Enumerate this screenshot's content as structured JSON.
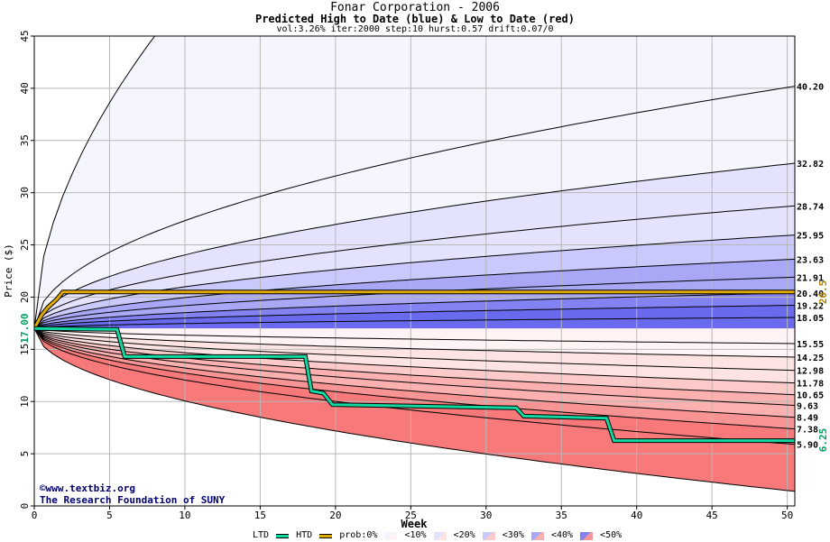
{
  "header": {
    "title": "Fonar Corporation - 2006",
    "subtitle": "Predicted High to Date (blue) &  Low to Date (red)",
    "params": "vol:3.26% iter:2000 step:10 hurst:0.57 drift:0.07/0"
  },
  "watermark": {
    "line1": "©www.textbiz.org",
    "line2": "The Research Foundation of SUNY"
  },
  "legend": {
    "ltd": "LTD",
    "htd": "HTD",
    "prob": "prob:0%",
    "b10": "<10%",
    "b20": "<20%",
    "b30": "<30%",
    "b40": "<40%",
    "b50": "<50%"
  },
  "chart_data": {
    "type": "area",
    "xlabel": "Week",
    "ylabel": "Price ($)",
    "xlim": [
      0,
      50.5
    ],
    "ylim": [
      0,
      45
    ],
    "x_ticks": [
      0,
      5,
      10,
      15,
      20,
      25,
      30,
      35,
      40,
      45,
      50
    ],
    "y_ticks": [
      0,
      5,
      10,
      15,
      20,
      25,
      30,
      35,
      40,
      45
    ],
    "grid": true,
    "start_value": 17.0,
    "start_label": "17.00",
    "htd_end_label": "20.5",
    "ltd_end_label": "6.25",
    "colors": {
      "htd": "#e0a800",
      "ltd": "#10d8a0",
      "blue_bands": [
        "#f5f5fe",
        "#e3e3fd",
        "#c9c9fb",
        "#a8a8f7",
        "#8282f2",
        "#6a6aee"
      ],
      "red_bands": [
        "#fff3f3",
        "#fee3e3",
        "#fdcaca",
        "#fcb0b0",
        "#f99494",
        "#f77979"
      ]
    },
    "upper_curves": [
      {
        "label": "",
        "end": 45
      },
      {
        "label": "40.20",
        "end": 40.2
      },
      {
        "label": "32.82",
        "end": 32.82
      },
      {
        "label": "28.74",
        "end": 28.74
      },
      {
        "label": "25.95",
        "end": 25.95
      },
      {
        "label": "23.63",
        "end": 23.63
      },
      {
        "label": "21.91",
        "end": 21.91
      },
      {
        "label": "20.40",
        "end": 20.4
      },
      {
        "label": "19.22",
        "end": 19.22
      },
      {
        "label": "18.05",
        "end": 18.05
      }
    ],
    "lower_curves": [
      {
        "label": "15.55",
        "end": 15.55
      },
      {
        "label": "14.25",
        "end": 14.25
      },
      {
        "label": "12.98",
        "end": 12.98
      },
      {
        "label": "11.78",
        "end": 11.78
      },
      {
        "label": "10.65",
        "end": 10.65
      },
      {
        "label": "9.63",
        "end": 9.63
      },
      {
        "label": "8.49",
        "end": 8.49
      },
      {
        "label": "7.38",
        "end": 7.38
      },
      {
        "label": "5.90",
        "end": 5.9
      },
      {
        "label": "",
        "end": 1.4
      }
    ],
    "htd": [
      [
        0,
        17.0
      ],
      [
        0.5,
        18.3
      ],
      [
        0.9,
        19.0
      ],
      [
        1.5,
        19.8
      ],
      [
        1.9,
        20.5
      ],
      [
        50.5,
        20.5
      ]
    ],
    "ltd": [
      [
        0,
        17.0
      ],
      [
        5.5,
        16.9
      ],
      [
        6.0,
        14.3
      ],
      [
        18.0,
        14.3
      ],
      [
        18.4,
        11.0
      ],
      [
        19.2,
        10.8
      ],
      [
        19.8,
        9.7
      ],
      [
        32.0,
        9.4
      ],
      [
        32.5,
        8.6
      ],
      [
        38.0,
        8.4
      ],
      [
        38.5,
        6.25
      ],
      [
        50.5,
        6.25
      ]
    ]
  }
}
